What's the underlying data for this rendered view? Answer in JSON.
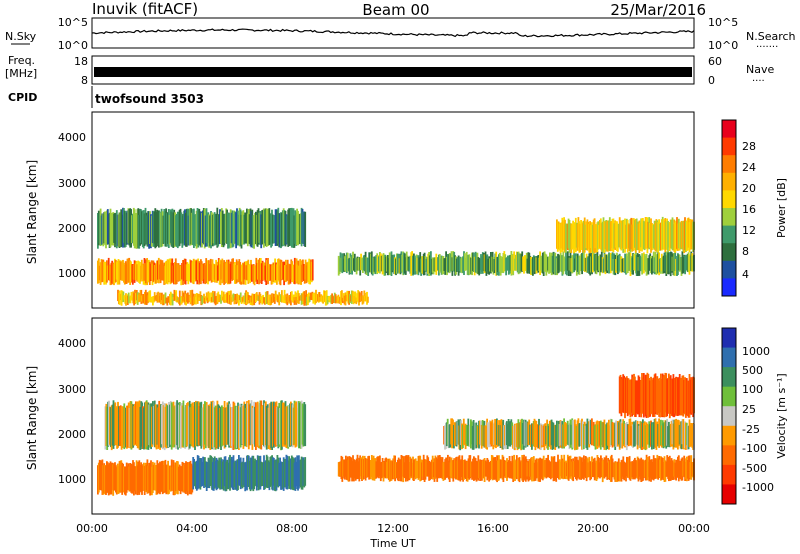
{
  "header": {
    "station": "Inuvik (fitACF)",
    "beam": "Beam 00",
    "date": "25/Mar/2016"
  },
  "noise_panel": {
    "left_label": "N.Sky",
    "right_label": "N.Search",
    "right_label_dots": "·······",
    "left_ticks": [
      "10^5",
      "10^0"
    ],
    "right_ticks": [
      "10^5",
      "10^0"
    ]
  },
  "freq_panel": {
    "left_label_line1": "Freq.",
    "left_label_line2": "[MHz]",
    "left_ticks": [
      "18",
      "8"
    ],
    "right_ticks": [
      "60",
      "0"
    ],
    "right_label": "Nave",
    "right_label_dots": "····"
  },
  "cpid": {
    "label": "CPID",
    "value": "twofsound 3503"
  },
  "axes": {
    "ylabel": "Slant Range [km]",
    "yticks": [
      "4000",
      "3000",
      "2000",
      "1000"
    ],
    "xlabel": "Time UT",
    "xticks": [
      "00:00",
      "04:00",
      "08:00",
      "12:00",
      "16:00",
      "20:00",
      "00:00"
    ]
  },
  "colorbars": {
    "power": {
      "title": "Power [dB]",
      "labels": [
        "28",
        "24",
        "20",
        "16",
        "12",
        "8",
        "4"
      ],
      "colors": [
        "#e8001c",
        "#ff3a00",
        "#ff7d00",
        "#ffb000",
        "#ffd800",
        "#9fcf3c",
        "#3f9a6b",
        "#2e6f3e",
        "#1e50a0",
        "#1a2aff"
      ]
    },
    "velocity": {
      "title": "Velocity [m s⁻¹]",
      "labels": [
        "1000",
        "500",
        "100",
        "25",
        "-25",
        "-100",
        "-500",
        "-1000"
      ],
      "colors": [
        "#1f2eb0",
        "#2f6fae",
        "#3c8f5e",
        "#6fbf3a",
        "#c8c8c4",
        "#ff9a00",
        "#ff6a00",
        "#ff3a00",
        "#e60000"
      ]
    }
  },
  "chart_data": [
    {
      "type": "heatmap",
      "title": "Power [dB]",
      "xlabel": "Time UT",
      "ylabel": "Slant Range [km]",
      "x_range_hours": [
        0,
        24
      ],
      "ylim_km": [
        200,
        4500
      ],
      "description_bands": [
        {
          "t_start": 0.2,
          "t_end": 8.8,
          "range_km": [
            700,
            1300
          ],
          "value_db": 24
        },
        {
          "t_start": 0.2,
          "t_end": 8.5,
          "range_km": [
            1500,
            2400
          ],
          "value_db": 12
        },
        {
          "t_start": 1.0,
          "t_end": 11.0,
          "range_km": [
            250,
            600
          ],
          "value_db": 22
        },
        {
          "t_start": 9.8,
          "t_end": 24.0,
          "range_km": [
            900,
            1450
          ],
          "value_db": 14
        },
        {
          "t_start": 18.5,
          "t_end": 24.0,
          "range_km": [
            1400,
            2200
          ],
          "value_db": 20
        }
      ]
    },
    {
      "type": "heatmap",
      "title": "Velocity [m s-1]",
      "xlabel": "Time UT",
      "ylabel": "Slant Range [km]",
      "x_range_hours": [
        0,
        24
      ],
      "ylim_km": [
        200,
        4500
      ],
      "description_bands": [
        {
          "t_start": 0.2,
          "t_end": 4.0,
          "range_km": [
            600,
            1400
          ],
          "value_ms": -150
        },
        {
          "t_start": 4.0,
          "t_end": 8.5,
          "range_km": [
            700,
            1500
          ],
          "value_ms": 300
        },
        {
          "t_start": 0.5,
          "t_end": 8.5,
          "range_km": [
            1600,
            2700
          ],
          "value_ms": 0
        },
        {
          "t_start": 9.8,
          "t_end": 24.0,
          "range_km": [
            900,
            1500
          ],
          "value_ms": -150
        },
        {
          "t_start": 14.0,
          "t_end": 24.0,
          "range_km": [
            1600,
            2300
          ],
          "value_ms": 0
        },
        {
          "t_start": 21.0,
          "t_end": 24.0,
          "range_km": [
            2300,
            3300
          ],
          "value_ms": -300
        }
      ]
    }
  ]
}
